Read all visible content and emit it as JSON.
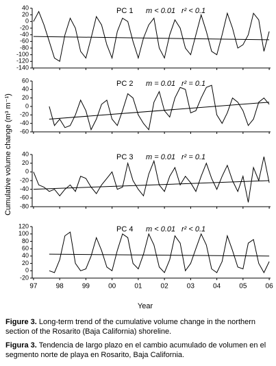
{
  "y_label": "Cumulative volume change (m³ m⁻¹)",
  "x_label": "Year",
  "caption": [
    {
      "label": "Figure 3.",
      "text": "Long-term trend of the cumulative volume change in the northern section of the Rosarito (Baja California) shoreline."
    },
    {
      "label": "Figura 3.",
      "text": "Tendencia de largo plazo en el cambio acumulado de volumen en el segmento norte de playa en Rosarito, Baja California."
    }
  ],
  "chart_data": [
    {
      "type": "line",
      "label": "PC 1",
      "m_text": "m < 0.01",
      "r2_text": "r² < 0.1",
      "color": "#000000",
      "xlim": [
        1996.95,
        2006.05
      ],
      "ylim": [
        -140,
        40
      ],
      "yticks": [
        40,
        20,
        0,
        -20,
        -40,
        -60,
        -80,
        -100,
        -120,
        -140
      ],
      "x": [
        1997.0,
        1997.2,
        1997.4,
        1997.6,
        1997.8,
        1998.0,
        1998.2,
        1998.4,
        1998.6,
        1998.8,
        1999.0,
        1999.2,
        1999.4,
        1999.6,
        1999.8,
        2000.0,
        2000.2,
        2000.4,
        2000.6,
        2000.8,
        2001.0,
        2001.2,
        2001.4,
        2001.6,
        2001.8,
        2002.0,
        2002.2,
        2002.4,
        2002.6,
        2002.8,
        2003.0,
        2003.2,
        2003.4,
        2003.6,
        2003.8,
        2004.0,
        2004.2,
        2004.4,
        2004.6,
        2004.8,
        2005.0,
        2005.2,
        2005.4,
        2005.6,
        2005.8,
        2006.0
      ],
      "values": [
        0,
        30,
        -10,
        -60,
        -110,
        -120,
        -40,
        10,
        -20,
        -90,
        -110,
        -50,
        15,
        -10,
        -70,
        -110,
        -30,
        10,
        0,
        -60,
        -110,
        -50,
        -10,
        10,
        -80,
        -110,
        -40,
        5,
        -20,
        -80,
        -100,
        -40,
        20,
        -30,
        -90,
        -100,
        -40,
        25,
        -20,
        -80,
        -70,
        -40,
        25,
        5,
        -90,
        -30
      ],
      "trend": {
        "x": [
          1997.0,
          2006.0
        ],
        "values": [
          -45,
          -55
        ]
      }
    },
    {
      "type": "line",
      "label": "PC 2",
      "m_text": "m = 0.01",
      "r2_text": "r² = 0.1",
      "color": "#000000",
      "xlim": [
        1996.95,
        2006.05
      ],
      "ylim": [
        -60,
        60
      ],
      "yticks": [
        60,
        40,
        20,
        0,
        -20,
        -40,
        -60
      ],
      "x": [
        1997.6,
        1997.8,
        1998.0,
        1998.2,
        1998.4,
        1998.6,
        1998.8,
        1999.0,
        1999.2,
        1999.4,
        1999.6,
        1999.8,
        2000.0,
        2000.2,
        2000.4,
        2000.6,
        2000.8,
        2001.0,
        2001.2,
        2001.4,
        2001.6,
        2001.8,
        2002.0,
        2002.2,
        2002.4,
        2002.6,
        2002.8,
        2003.0,
        2003.2,
        2003.4,
        2003.6,
        2003.8,
        2004.0,
        2004.2,
        2004.4,
        2004.6,
        2004.8,
        2005.0,
        2005.2,
        2005.4,
        2005.6,
        2005.8,
        2006.0
      ],
      "values": [
        0,
        -45,
        -30,
        -50,
        -45,
        -20,
        15,
        -10,
        -55,
        -30,
        5,
        15,
        -30,
        -45,
        -10,
        30,
        20,
        -20,
        -40,
        -55,
        10,
        35,
        -10,
        -25,
        20,
        45,
        40,
        -15,
        -10,
        20,
        45,
        50,
        -20,
        -40,
        -15,
        20,
        10,
        -10,
        -45,
        -30,
        10,
        20,
        5
      ],
      "trend": {
        "x": [
          1997.6,
          2006.0
        ],
        "values": [
          -30,
          10
        ]
      }
    },
    {
      "type": "line",
      "label": "PC 3",
      "m_text": "m = 0.01",
      "r2_text": "r² = 0.1",
      "color": "#000000",
      "xlim": [
        1996.95,
        2006.05
      ],
      "ylim": [
        -80,
        40
      ],
      "yticks": [
        40,
        20,
        0,
        -20,
        -40,
        -60,
        -80
      ],
      "x": [
        1997.0,
        1997.2,
        1997.4,
        1997.6,
        1997.8,
        1998.0,
        1998.2,
        1998.4,
        1998.6,
        1998.8,
        1999.0,
        1999.2,
        1999.4,
        1999.6,
        1999.8,
        2000.0,
        2000.2,
        2000.4,
        2000.6,
        2000.8,
        2001.0,
        2001.2,
        2001.4,
        2001.6,
        2001.8,
        2002.0,
        2002.2,
        2002.4,
        2002.6,
        2002.8,
        2003.0,
        2003.2,
        2003.4,
        2003.6,
        2003.8,
        2004.0,
        2004.2,
        2004.4,
        2004.6,
        2004.8,
        2005.0,
        2005.2,
        2005.4,
        2005.6,
        2005.8,
        2006.0
      ],
      "values": [
        0,
        -30,
        -35,
        -45,
        -40,
        -55,
        -40,
        -30,
        -45,
        -10,
        -15,
        -35,
        -50,
        -30,
        -15,
        0,
        -40,
        -35,
        20,
        -20,
        -40,
        -55,
        -5,
        25,
        -30,
        -45,
        -10,
        10,
        -30,
        -10,
        -25,
        -45,
        -10,
        20,
        -15,
        -40,
        -10,
        15,
        -20,
        -45,
        -10,
        -70,
        10,
        -20,
        35,
        -25
      ],
      "trend": {
        "x": [
          1997.0,
          2006.0
        ],
        "values": [
          -40,
          -20
        ]
      }
    },
    {
      "type": "line",
      "label": "PC 4",
      "m_text": "m < 0.01",
      "r2_text": "r² < 0.1",
      "color": "#000000",
      "xlim": [
        1996.95,
        2006.05
      ],
      "ylim": [
        -20,
        120
      ],
      "yticks": [
        120,
        100,
        80,
        60,
        40,
        20,
        0,
        -20
      ],
      "xticks": [
        {
          "value": 1997,
          "label": "97"
        },
        {
          "value": 1998,
          "label": "98"
        },
        {
          "value": 1999,
          "label": "99"
        },
        {
          "value": 2000,
          "label": "00"
        },
        {
          "value": 2001,
          "label": "01"
        },
        {
          "value": 2002,
          "label": "02"
        },
        {
          "value": 2003,
          "label": "03"
        },
        {
          "value": 2004,
          "label": "04"
        },
        {
          "value": 2005,
          "label": "05"
        },
        {
          "value": 2006,
          "label": "06"
        }
      ],
      "x": [
        1997.6,
        1997.8,
        1998.0,
        1998.2,
        1998.4,
        1998.6,
        1998.8,
        1999.0,
        1999.2,
        1999.4,
        1999.6,
        1999.8,
        2000.0,
        2000.2,
        2000.4,
        2000.6,
        2000.8,
        2001.0,
        2001.2,
        2001.4,
        2001.6,
        2001.8,
        2002.0,
        2002.2,
        2002.4,
        2002.6,
        2002.8,
        2003.0,
        2003.2,
        2003.4,
        2003.6,
        2003.8,
        2004.0,
        2004.2,
        2004.4,
        2004.6,
        2004.8,
        2005.0,
        2005.2,
        2005.4,
        2005.6,
        2005.8,
        2006.0
      ],
      "values": [
        0,
        -5,
        30,
        95,
        105,
        20,
        0,
        5,
        40,
        90,
        55,
        10,
        0,
        55,
        100,
        90,
        20,
        5,
        45,
        100,
        70,
        10,
        -5,
        30,
        95,
        75,
        0,
        20,
        60,
        100,
        70,
        5,
        -5,
        25,
        95,
        55,
        10,
        5,
        75,
        85,
        20,
        -5,
        25
      ],
      "trend": {
        "x": [
          1997.6,
          2006.0
        ],
        "values": [
          45,
          40
        ]
      }
    }
  ]
}
